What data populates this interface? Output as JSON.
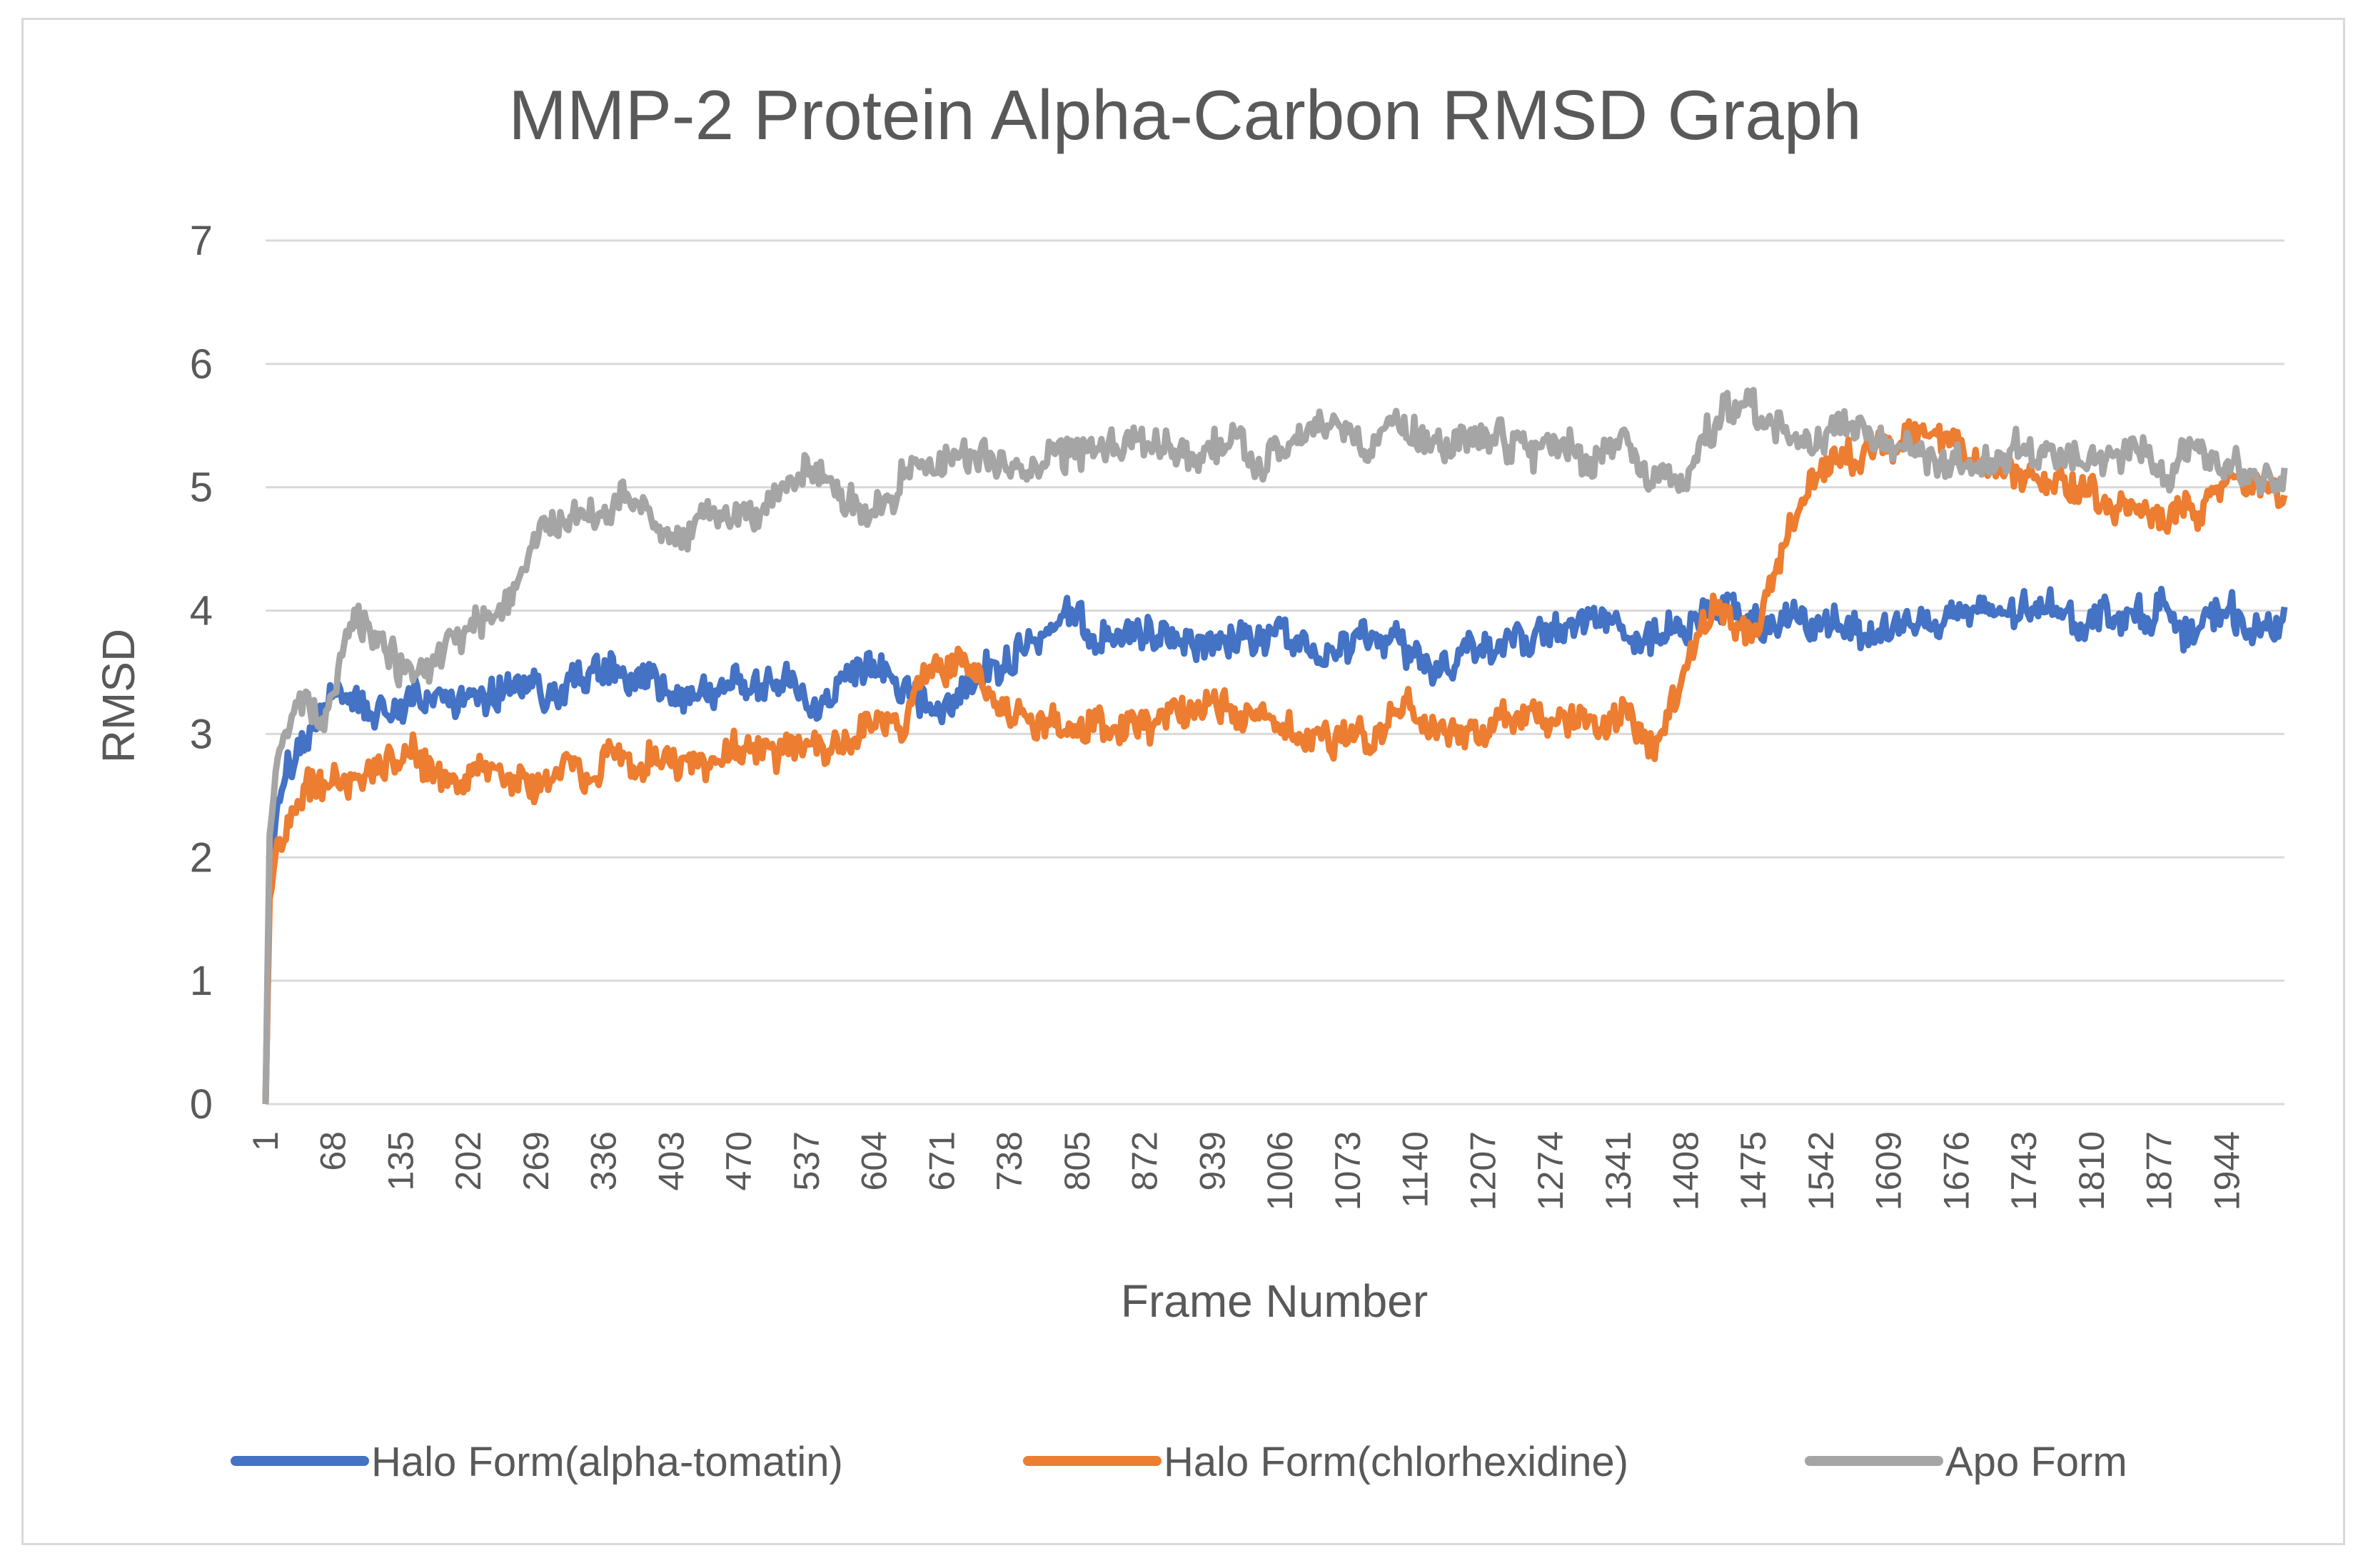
{
  "chart_data": {
    "type": "line",
    "title": "MMP-2 Protein Alpha-Carbon RMSD Graph",
    "xlabel": "Frame Number",
    "ylabel": "RMSD",
    "ylim": [
      0,
      7
    ],
    "xlim": [
      1,
      2001
    ],
    "grid": true,
    "legend_position": "bottom",
    "y_ticks": [
      "0",
      "1",
      "2",
      "3",
      "4",
      "5",
      "6",
      "7"
    ],
    "x_ticks": [
      "1",
      "68",
      "135",
      "202",
      "269",
      "336",
      "403",
      "470",
      "537",
      "604",
      "671",
      "738",
      "805",
      "872",
      "939",
      "1006",
      "1073",
      "1140",
      "1207",
      "1274",
      "1341",
      "1408",
      "1475",
      "1542",
      "1609",
      "1676",
      "1743",
      "1810",
      "1877",
      "1944"
    ],
    "series": [
      {
        "name": "Halo Form(alpha-tomatin)",
        "color": "#4472c4",
        "x": [
          1,
          5,
          12,
          25,
          40,
          55,
          70,
          85,
          100,
          130,
          160,
          190,
          220,
          250,
          280,
          310,
          340,
          370,
          400,
          430,
          460,
          490,
          520,
          550,
          580,
          610,
          640,
          670,
          700,
          730,
          760,
          790,
          820,
          850,
          880,
          910,
          940,
          970,
          1000,
          1030,
          1060,
          1090,
          1120,
          1150,
          1180,
          1210,
          1240,
          1270,
          1300,
          1330,
          1360,
          1390,
          1420,
          1450,
          1480,
          1510,
          1540,
          1570,
          1600,
          1630,
          1660,
          1690,
          1720,
          1750,
          1780,
          1810,
          1840,
          1870,
          1900,
          1930,
          1960,
          1990,
          2001
        ],
        "y": [
          0.0,
          1.8,
          2.4,
          2.7,
          2.9,
          3.2,
          3.4,
          3.3,
          3.2,
          3.3,
          3.35,
          3.3,
          3.25,
          3.3,
          3.4,
          3.45,
          3.5,
          3.4,
          3.35,
          3.3,
          3.35,
          3.4,
          3.45,
          3.2,
          3.35,
          3.45,
          3.3,
          3.2,
          3.4,
          3.6,
          3.75,
          3.85,
          3.8,
          3.75,
          3.78,
          3.8,
          3.82,
          3.75,
          3.8,
          3.78,
          3.82,
          3.75,
          3.7,
          3.55,
          3.65,
          3.75,
          3.8,
          3.82,
          3.85,
          3.9,
          3.7,
          3.85,
          3.9,
          3.95,
          3.9,
          3.85,
          3.88,
          3.9,
          3.85,
          3.9,
          3.92,
          3.95,
          3.95,
          3.98,
          3.95,
          3.98,
          3.97,
          3.99,
          3.95,
          3.92,
          3.9,
          3.9,
          3.92
        ]
      },
      {
        "name": "Halo Form(chlorhexidine)",
        "color": "#ed7d31",
        "x": [
          1,
          5,
          12,
          25,
          40,
          55,
          70,
          85,
          100,
          130,
          160,
          190,
          220,
          250,
          280,
          310,
          340,
          370,
          400,
          430,
          460,
          490,
          520,
          550,
          580,
          610,
          640,
          650,
          670,
          700,
          730,
          760,
          790,
          820,
          850,
          880,
          910,
          940,
          970,
          1000,
          1030,
          1060,
          1090,
          1120,
          1150,
          1180,
          1210,
          1240,
          1270,
          1300,
          1330,
          1360,
          1380,
          1400,
          1420,
          1450,
          1480,
          1500,
          1520,
          1550,
          1580,
          1610,
          1630,
          1660,
          1690,
          1720,
          1750,
          1780,
          1810,
          1840,
          1870,
          1900,
          1930,
          1960,
          1990,
          2001
        ],
        "y": [
          0.0,
          1.7,
          2.1,
          2.3,
          2.45,
          2.5,
          2.6,
          2.65,
          2.75,
          2.8,
          2.7,
          2.65,
          2.7,
          2.6,
          2.65,
          2.7,
          2.75,
          2.8,
          2.75,
          2.8,
          2.85,
          2.9,
          2.85,
          2.9,
          2.95,
          3.0,
          3.1,
          3.5,
          3.6,
          3.5,
          3.3,
          3.1,
          3.15,
          3.1,
          3.05,
          3.0,
          3.1,
          3.2,
          3.15,
          3.1,
          3.05,
          3.0,
          3.05,
          3.1,
          3.15,
          3.1,
          3.05,
          3.1,
          3.15,
          3.1,
          3.05,
          3.1,
          2.9,
          3.3,
          3.9,
          4.0,
          3.9,
          4.4,
          5.0,
          5.2,
          5.3,
          5.4,
          5.55,
          5.4,
          5.2,
          5.1,
          5.05,
          5.0,
          4.9,
          4.85,
          4.9,
          4.95,
          4.9,
          4.95,
          5.0,
          4.95
        ]
      },
      {
        "name": "Apo Form",
        "color": "#a5a5a5",
        "x": [
          1,
          5,
          12,
          25,
          40,
          55,
          70,
          85,
          100,
          130,
          160,
          190,
          220,
          250,
          270,
          300,
          330,
          360,
          390,
          420,
          450,
          480,
          510,
          540,
          570,
          600,
          630,
          660,
          690,
          720,
          750,
          780,
          810,
          840,
          870,
          900,
          930,
          960,
          990,
          1020,
          1050,
          1080,
          1110,
          1140,
          1170,
          1200,
          1230,
          1260,
          1290,
          1320,
          1350,
          1380,
          1410,
          1440,
          1470,
          1500,
          1530,
          1560,
          1590,
          1620,
          1650,
          1680,
          1710,
          1740,
          1770,
          1800,
          1830,
          1860,
          1890,
          1920,
          1950,
          1980,
          2001
        ],
        "y": [
          0.0,
          2.2,
          2.8,
          3.1,
          3.3,
          3.1,
          3.4,
          3.8,
          3.9,
          3.6,
          3.5,
          3.7,
          3.9,
          4.2,
          4.6,
          4.8,
          4.75,
          4.9,
          4.7,
          4.6,
          4.8,
          4.85,
          4.9,
          5.1,
          5.0,
          4.8,
          5.1,
          5.2,
          5.3,
          5.2,
          5.0,
          5.3,
          5.35,
          5.4,
          5.35,
          5.25,
          5.3,
          5.25,
          5.3,
          5.4,
          5.45,
          5.45,
          5.5,
          5.45,
          5.4,
          5.35,
          5.3,
          5.3,
          5.35,
          5.2,
          5.25,
          5.15,
          5.05,
          5.5,
          5.6,
          5.45,
          5.35,
          5.4,
          5.4,
          5.3,
          5.25,
          5.2,
          5.25,
          5.3,
          5.2,
          5.15,
          5.25,
          5.3,
          5.25,
          5.3,
          5.2,
          5.15,
          5.2
        ]
      }
    ]
  }
}
